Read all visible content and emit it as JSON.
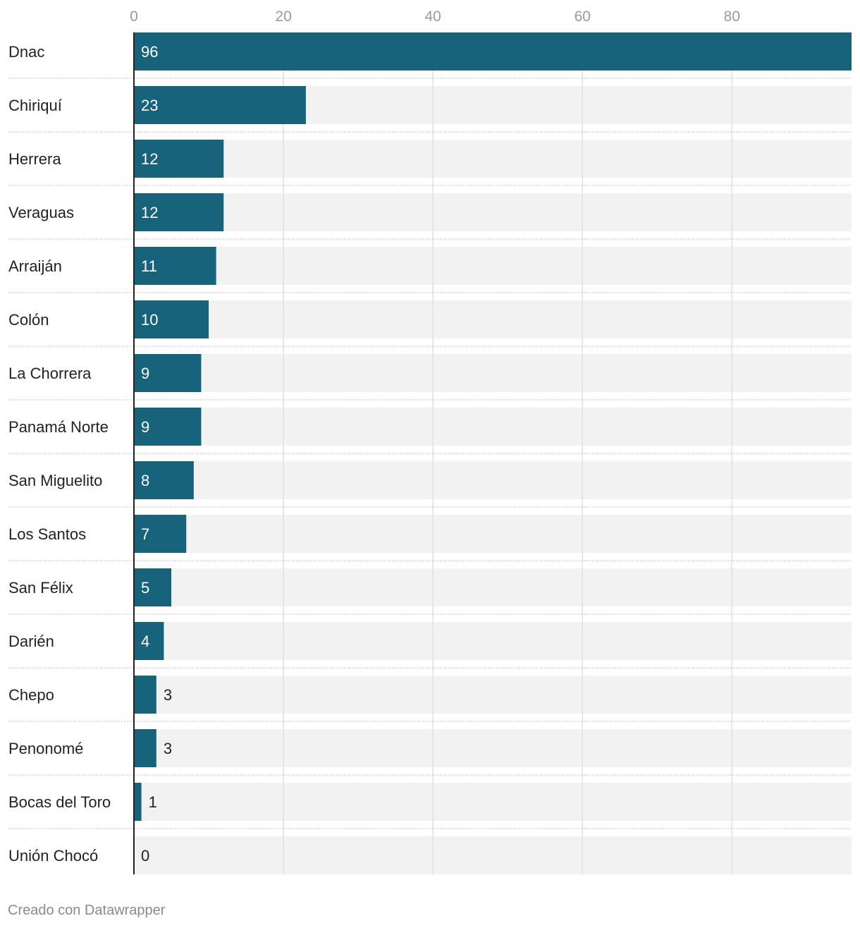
{
  "chart_data": {
    "type": "bar",
    "orientation": "horizontal",
    "title": "",
    "xlabel": "",
    "ylabel": "",
    "xlim": [
      0,
      96
    ],
    "ticks": [
      0,
      20,
      40,
      60,
      80
    ],
    "tick_labels": [
      "0",
      "20",
      "40",
      "60",
      "80"
    ],
    "grid": true,
    "categories": [
      "Dnac",
      "Chiriquí",
      "Herrera",
      "Veraguas",
      "Arraiján",
      "Colón",
      "La Chorrera",
      "Panamá Norte",
      "San Miguelito",
      "Los Santos",
      "San Félix",
      "Darién",
      "Chepo",
      "Penonomé",
      "Bocas del Toro",
      "Unión Chocó"
    ],
    "values": [
      96,
      23,
      12,
      12,
      11,
      10,
      9,
      9,
      8,
      7,
      5,
      4,
      3,
      3,
      1,
      0
    ],
    "colors": {
      "bar": "#17637c",
      "background_bar": "#f2f2f2",
      "grid": "#e0e0e0",
      "text": "#222222",
      "axis_text": "#9a9a9a"
    }
  },
  "footer": "Creado con Datawrapper"
}
